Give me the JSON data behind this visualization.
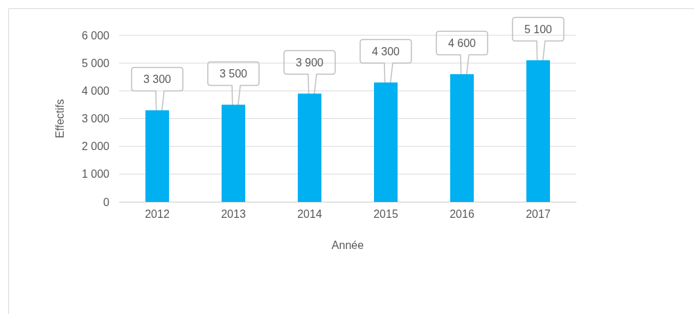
{
  "chart_data": {
    "type": "bar",
    "xlabel": "Année",
    "ylabel": "Effectifs",
    "categories": [
      "2012",
      "2013",
      "2014",
      "2015",
      "2016",
      "2017"
    ],
    "values": [
      3300,
      3500,
      3900,
      4300,
      4600,
      5100
    ],
    "value_labels": [
      "3 300",
      "3 500",
      "3 900",
      "4 300",
      "4 600",
      "5 100"
    ],
    "color": "#00b0f0",
    "ylim": [
      0,
      6000
    ],
    "yticks": [
      {
        "value": 0,
        "label": "0"
      },
      {
        "value": 1000,
        "label": "1 000"
      },
      {
        "value": 2000,
        "label": "2 000"
      },
      {
        "value": 3000,
        "label": "3 000"
      },
      {
        "value": 4000,
        "label": "4 000"
      },
      {
        "value": 5000,
        "label": "5 000"
      },
      {
        "value": 6000,
        "label": "6 000"
      }
    ],
    "grid": "y"
  }
}
